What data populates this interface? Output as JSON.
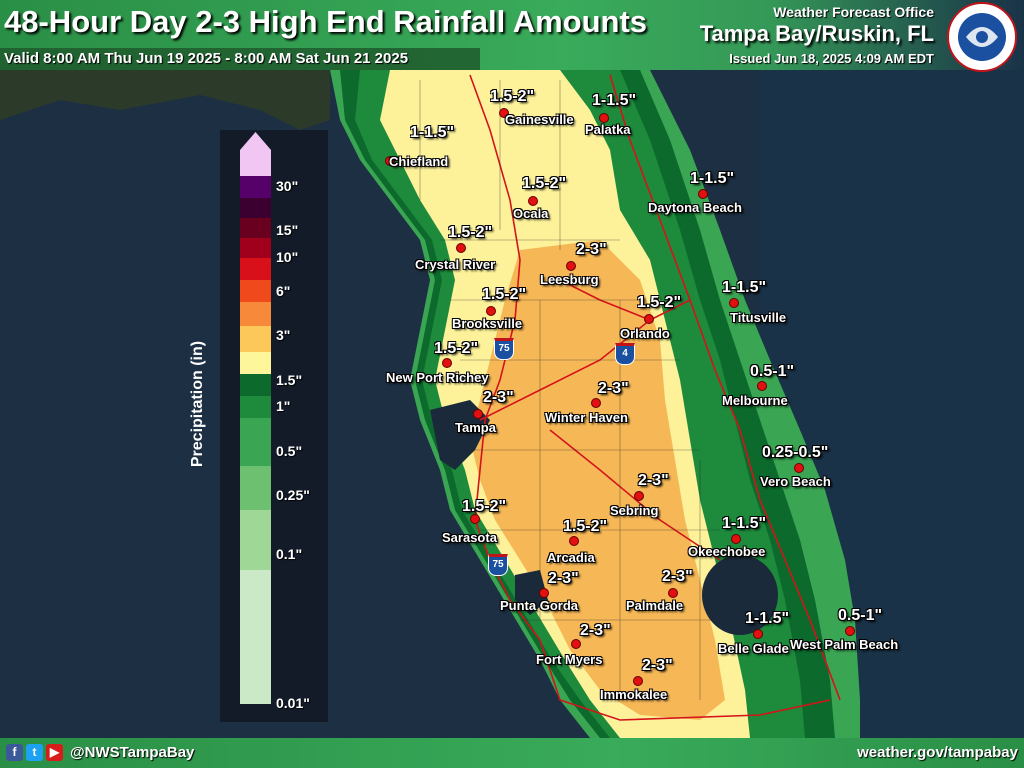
{
  "header": {
    "title": "48-Hour Day 2-3 High End Rainfall Amounts",
    "valid": "Valid 8:00 AM Thu Jun 19 2025 - 8:00 AM Sat Jun 21 2025",
    "office_label": "Weather Forecast Office",
    "office_name": "Tampa Bay/Ruskin, FL",
    "issued": "Issued Jun 18, 2025 4:09 AM EDT",
    "logo_icon": "nws-logo-icon"
  },
  "legend": {
    "title": "Precipitation (in)",
    "ticks": [
      "30\"",
      "15\"",
      "10\"",
      "6\"",
      "3\"",
      "1.5\"",
      "1\"",
      "0.5\"",
      "0.25\"",
      "0.1\"",
      "0.01\""
    ],
    "colors": [
      "#f2c6f2",
      "#56006a",
      "#3b0030",
      "#6a0020",
      "#a0001c",
      "#d8101a",
      "#f04a1c",
      "#f6893a",
      "#fcc85a",
      "#fdf69a",
      "#0b6a2c",
      "#1e8a3c",
      "#3aa552",
      "#6cc070",
      "#9fd796",
      "#cbe9c6"
    ]
  },
  "cities": [
    {
      "name": "Chiefland",
      "amount": "1-1.5\""
    },
    {
      "name": "Gainesville",
      "amount": "1.5-2\""
    },
    {
      "name": "Palatka",
      "amount": "1-1.5\""
    },
    {
      "name": "Ocala",
      "amount": "1.5-2\""
    },
    {
      "name": "Daytona Beach",
      "amount": "1-1.5\""
    },
    {
      "name": "Crystal River",
      "amount": "1.5-2\""
    },
    {
      "name": "Leesburg",
      "amount": "2-3\""
    },
    {
      "name": "Brooksville",
      "amount": "1.5-2\""
    },
    {
      "name": "Orlando",
      "amount": "1.5-2\""
    },
    {
      "name": "Titusville",
      "amount": "1-1.5\""
    },
    {
      "name": "New Port Richey",
      "amount": "1.5-2\""
    },
    {
      "name": "Melbourne",
      "amount": "0.5-1\""
    },
    {
      "name": "Tampa",
      "amount": "2-3\""
    },
    {
      "name": "Winter Haven",
      "amount": "2-3\""
    },
    {
      "name": "Vero Beach",
      "amount": "0.25-0.5\""
    },
    {
      "name": "Sebring",
      "amount": "2-3\""
    },
    {
      "name": "Sarasota",
      "amount": "1.5-2\""
    },
    {
      "name": "Arcadia",
      "amount": "1.5-2\""
    },
    {
      "name": "Okeechobee",
      "amount": "1-1.5\""
    },
    {
      "name": "Punta Gorda",
      "amount": "2-3\""
    },
    {
      "name": "Palmdale",
      "amount": "2-3\""
    },
    {
      "name": "Fort Myers",
      "amount": "2-3\""
    },
    {
      "name": "Belle Glade",
      "amount": "1-1.5\""
    },
    {
      "name": "West Palm Beach",
      "amount": "0.5-1\""
    },
    {
      "name": "Immokalee",
      "amount": "2-3\""
    }
  ],
  "highway_shields": [
    "75",
    "4",
    "75"
  ],
  "footer": {
    "social_icons": [
      "facebook-icon",
      "twitter-icon",
      "youtube-icon"
    ],
    "handle": "@NWSTampaBay",
    "website": "weather.gov/tampabay"
  }
}
